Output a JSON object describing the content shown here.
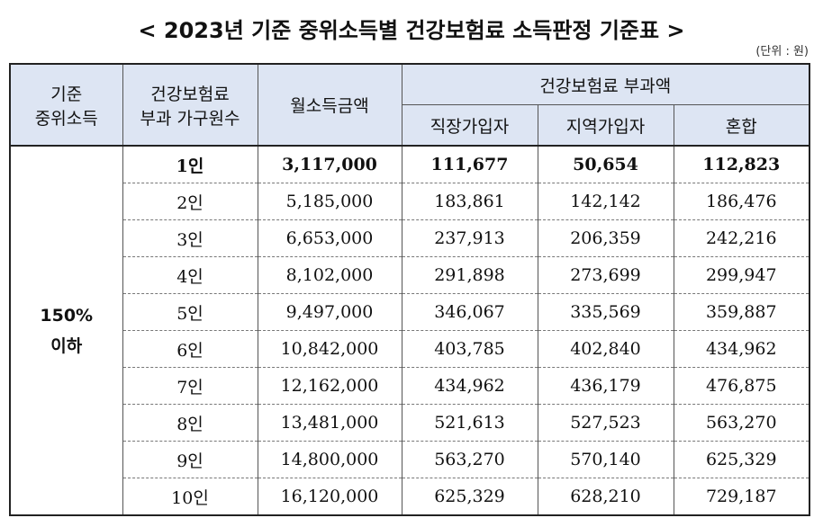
{
  "title": "< 2023년 기준 중위소득별 건강보험료 소득판정 기준표 >",
  "unit": "(단위 : 원)",
  "headers": {
    "median_income_l1": "기준",
    "median_income_l2": "중위소득",
    "household_l1": "건강보험료",
    "household_l2": "부과 가구원수",
    "monthly_income": "월소득금액",
    "premium_group": "건강보험료 부과액",
    "employee": "직장가입자",
    "regional": "지역가입자",
    "mixed": "혼합"
  },
  "group_label_l1": "150%",
  "group_label_l2": "이하",
  "rows": [
    {
      "members": "1인",
      "income": "3,117,000",
      "employee": "111,677",
      "regional": "50,654",
      "mixed": "112,823"
    },
    {
      "members": "2인",
      "income": "5,185,000",
      "employee": "183,861",
      "regional": "142,142",
      "mixed": "186,476"
    },
    {
      "members": "3인",
      "income": "6,653,000",
      "employee": "237,913",
      "regional": "206,359",
      "mixed": "242,216"
    },
    {
      "members": "4인",
      "income": "8,102,000",
      "employee": "291,898",
      "regional": "273,699",
      "mixed": "299,947"
    },
    {
      "members": "5인",
      "income": "9,497,000",
      "employee": "346,067",
      "regional": "335,569",
      "mixed": "359,887"
    },
    {
      "members": "6인",
      "income": "10,842,000",
      "employee": "403,785",
      "regional": "402,840",
      "mixed": "434,962"
    },
    {
      "members": "7인",
      "income": "12,162,000",
      "employee": "434,962",
      "regional": "436,179",
      "mixed": "476,875"
    },
    {
      "members": "8인",
      "income": "13,481,000",
      "employee": "521,613",
      "regional": "527,523",
      "mixed": "563,270"
    },
    {
      "members": "9인",
      "income": "14,800,000",
      "employee": "563,270",
      "regional": "570,140",
      "mixed": "625,329"
    },
    {
      "members": "10인",
      "income": "16,120,000",
      "employee": "625,329",
      "regional": "628,210",
      "mixed": "729,187"
    }
  ]
}
